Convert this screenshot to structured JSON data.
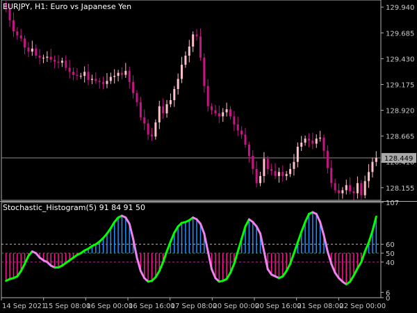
{
  "header": {
    "symbol": "EURJPY, H1:",
    "description": "Euro vs Japanese Yen"
  },
  "price_panel": {
    "price_ticks": [
      "129.940",
      "129.685",
      "129.430",
      "129.175",
      "128.920",
      "128.665",
      "128.410",
      "128.155"
    ],
    "current_price": "128.449"
  },
  "indicator_panel": {
    "title": "Stochastic_Histogram(5) 91 84 91 50",
    "ticks": [
      "107",
      "60",
      "50",
      "40",
      "6",
      "0"
    ]
  },
  "time_axis": {
    "labels": [
      "14 Sep 2021",
      "15 Sep 08:00",
      "16 Sep 00:00",
      "16 Sep 16:00",
      "17 Sep 08:00",
      "20 Sep 00:00",
      "20 Sep 16:00",
      "21 Sep 08:00",
      "22 Sep 00:00"
    ]
  },
  "colors": {
    "background": "#000000",
    "bull_candle": "#ffc0cb",
    "bear_candle": "#c71585",
    "hist_up": "#1e90ff",
    "hist_down": "#ff1493",
    "line_up": "#00ff00",
    "line_down": "#ee82ee",
    "level_upper": "#2e8b57",
    "level_lower": "#a0308a",
    "grid": "#c0c0c0"
  },
  "chart_data": {
    "type": "candlestick",
    "series_name": "EURJPY H1",
    "y_range": [
      128.03,
      130.01
    ],
    "indicator_range": [
      0,
      107
    ],
    "levels": [
      50,
      60,
      40
    ],
    "closes": [
      129.92,
      129.81,
      129.7,
      129.66,
      129.63,
      129.54,
      129.5,
      129.53,
      129.46,
      129.44,
      129.44,
      129.45,
      129.42,
      129.4,
      129.39,
      129.41,
      129.34,
      129.3,
      129.27,
      129.26,
      129.26,
      129.3,
      129.22,
      129.23,
      129.21,
      129.2,
      129.18,
      129.21,
      129.25,
      129.26,
      129.29,
      129.27,
      129.31,
      129.2,
      129.09,
      129.0,
      128.85,
      128.79,
      128.68,
      128.66,
      128.8,
      128.96,
      128.89,
      128.98,
      129.02,
      129.13,
      129.23,
      129.37,
      129.46,
      129.55,
      129.67,
      129.65,
      129.44,
      129.16,
      128.96,
      128.92,
      128.89,
      128.86,
      128.9,
      128.93,
      128.86,
      128.78,
      128.72,
      128.68,
      128.58,
      128.47,
      128.34,
      128.2,
      128.27,
      128.44,
      128.34,
      128.32,
      128.27,
      128.31,
      128.27,
      128.29,
      128.34,
      128.41,
      128.56,
      128.6,
      128.64,
      128.62,
      128.59,
      128.64,
      128.65,
      128.52,
      128.35,
      128.2,
      128.13,
      128.1,
      128.13,
      128.18,
      128.12,
      128.1,
      128.2,
      128.08,
      128.22,
      128.31,
      128.41,
      128.45
    ],
    "stochastic": [
      19,
      21,
      22,
      24,
      30,
      38,
      47,
      52,
      50,
      45,
      42,
      40,
      36,
      34,
      34,
      36,
      39,
      42,
      45,
      48,
      50,
      53,
      55,
      58,
      60,
      63,
      67,
      72,
      78,
      85,
      90,
      92,
      90,
      83,
      66,
      45,
      30,
      22,
      18,
      19,
      23,
      30,
      40,
      52,
      63,
      73,
      80,
      84,
      85,
      87,
      90,
      88,
      83,
      72,
      52,
      32,
      22,
      18,
      19,
      21,
      28,
      38,
      52,
      66,
      80,
      88,
      85,
      80,
      72,
      52,
      32,
      26,
      24,
      22,
      24,
      30,
      38,
      50,
      62,
      74,
      85,
      94,
      96,
      94,
      85,
      70,
      52,
      38,
      28,
      22,
      18,
      15,
      18,
      25,
      33,
      40,
      52,
      62,
      75,
      91
    ]
  }
}
